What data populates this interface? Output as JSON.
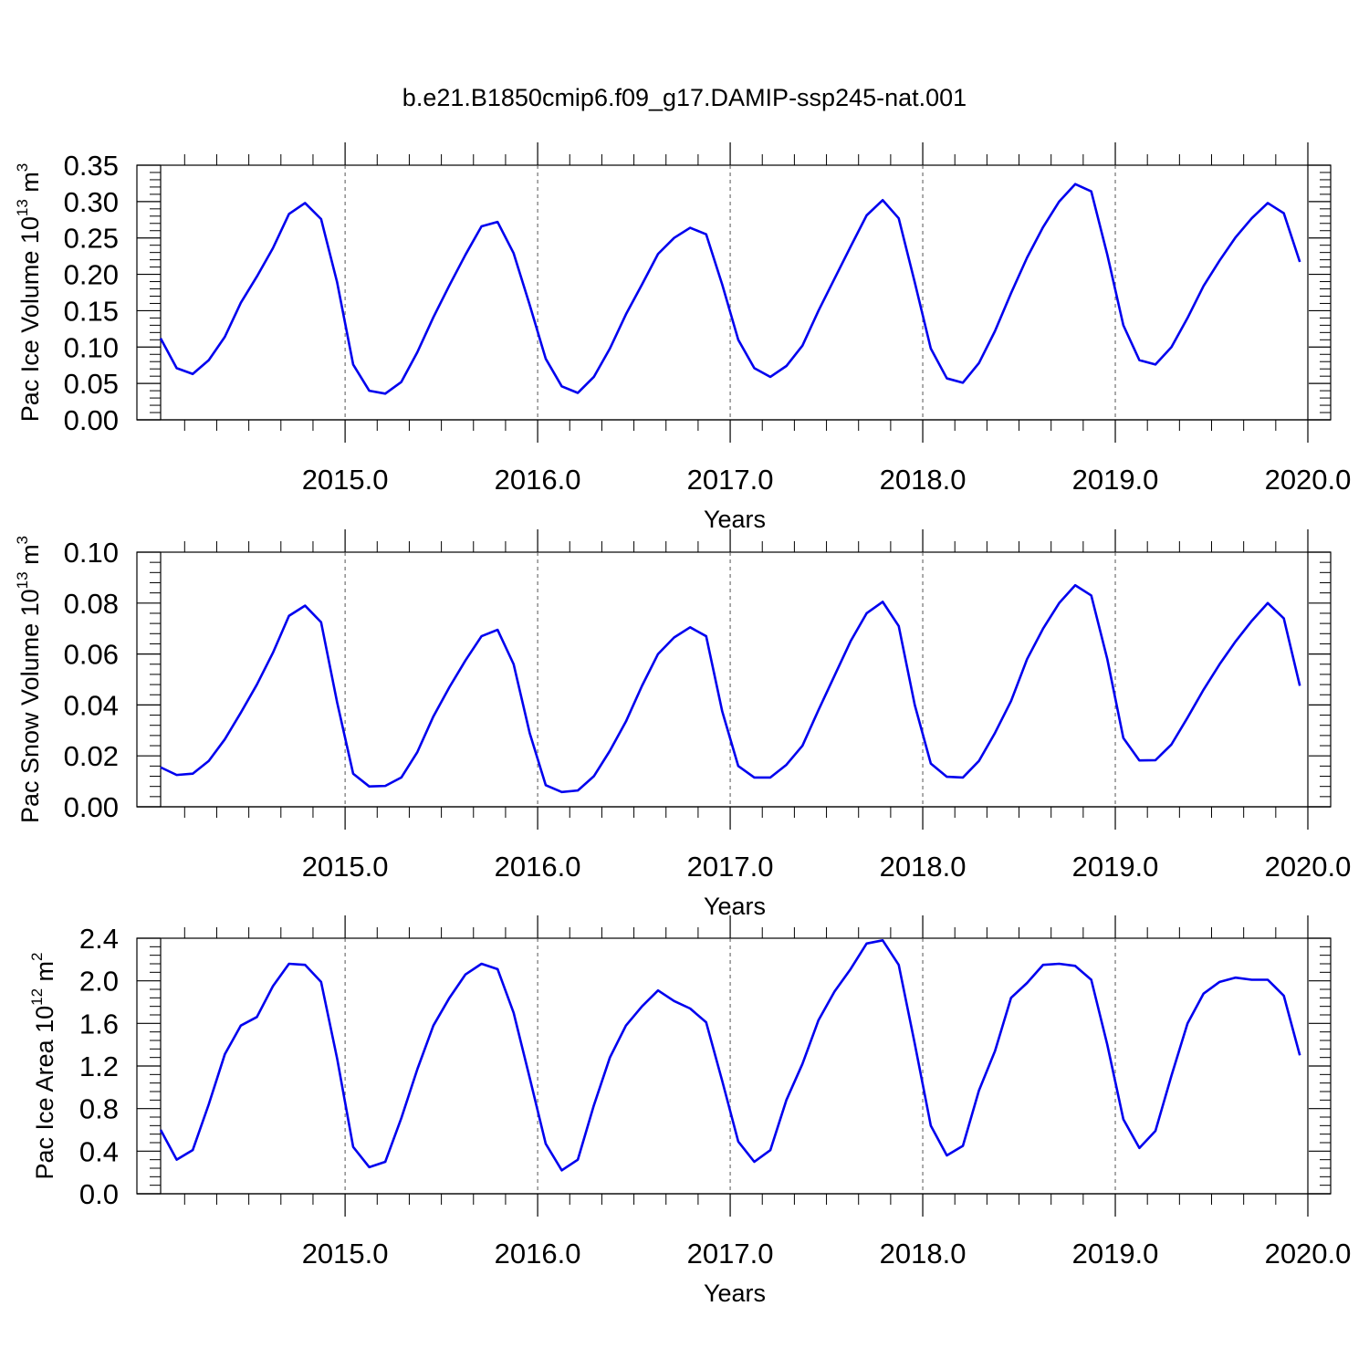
{
  "title": "b.e21.B1850cmip6.f09_g17.DAMIP-ssp245-nat.001",
  "chart_data": [
    {
      "type": "line",
      "ylabel": "Pac Ice Volume 10",
      "ylabel_exp": "13",
      "ylabel_unit": " m",
      "ylabel_unit_exp": "3",
      "xlabel": "Years",
      "xlim": [
        2014.042,
        2020.0
      ],
      "ylim": [
        0,
        0.35
      ],
      "yticks": [
        "0.00",
        "0.05",
        "0.10",
        "0.15",
        "0.20",
        "0.25",
        "0.30",
        "0.35"
      ],
      "xticks": [
        "2015.0",
        "2016.0",
        "2017.0",
        "2018.0",
        "2019.0",
        "2020.0"
      ],
      "x_start": 2014.042,
      "x_step": 0.08333,
      "color": "#0000ee",
      "grid": "vertical dashed at years",
      "values": [
        0.112,
        0.071,
        0.063,
        0.082,
        0.114,
        0.161,
        0.197,
        0.236,
        0.283,
        0.298,
        0.276,
        0.189,
        0.076,
        0.04,
        0.036,
        0.052,
        0.093,
        0.141,
        0.185,
        0.227,
        0.266,
        0.272,
        0.229,
        0.158,
        0.084,
        0.046,
        0.037,
        0.059,
        0.098,
        0.145,
        0.186,
        0.228,
        0.25,
        0.264,
        0.255,
        0.186,
        0.11,
        0.071,
        0.059,
        0.074,
        0.102,
        0.15,
        0.194,
        0.238,
        0.281,
        0.302,
        0.277,
        0.189,
        0.098,
        0.057,
        0.051,
        0.078,
        0.122,
        0.174,
        0.223,
        0.265,
        0.3,
        0.324,
        0.314,
        0.227,
        0.13,
        0.082,
        0.076,
        0.1,
        0.14,
        0.184,
        0.219,
        0.251,
        0.277,
        0.298,
        0.284,
        0.217
      ]
    },
    {
      "type": "line",
      "ylabel": "Pac Snow Volume 10",
      "ylabel_exp": "13",
      "ylabel_unit": " m",
      "ylabel_unit_exp": "3",
      "xlabel": "Years",
      "xlim": [
        2014.042,
        2020.0
      ],
      "ylim": [
        0,
        0.1
      ],
      "yticks": [
        "0.00",
        "0.02",
        "0.04",
        "0.06",
        "0.08",
        "0.10"
      ],
      "xticks": [
        "2015.0",
        "2016.0",
        "2017.0",
        "2018.0",
        "2019.0",
        "2020.0"
      ],
      "x_start": 2014.042,
      "x_step": 0.08333,
      "color": "#0000ee",
      "grid": "vertical dashed at years",
      "values": [
        0.0155,
        0.0125,
        0.013,
        0.018,
        0.0265,
        0.037,
        0.048,
        0.0605,
        0.075,
        0.079,
        0.0725,
        0.041,
        0.013,
        0.008,
        0.0082,
        0.0115,
        0.0215,
        0.0355,
        0.047,
        0.0575,
        0.067,
        0.0695,
        0.056,
        0.029,
        0.0085,
        0.0058,
        0.0064,
        0.012,
        0.022,
        0.0335,
        0.0475,
        0.06,
        0.0665,
        0.0705,
        0.067,
        0.0375,
        0.016,
        0.0115,
        0.0115,
        0.0165,
        0.024,
        0.038,
        0.0515,
        0.065,
        0.076,
        0.0805,
        0.071,
        0.04,
        0.017,
        0.0118,
        0.0115,
        0.018,
        0.029,
        0.0415,
        0.058,
        0.07,
        0.08,
        0.087,
        0.083,
        0.058,
        0.027,
        0.0182,
        0.0183,
        0.0245,
        0.035,
        0.046,
        0.056,
        0.065,
        0.073,
        0.08,
        0.074,
        0.0475
      ]
    },
    {
      "type": "line",
      "ylabel": "Pac Ice Area 10",
      "ylabel_exp": "12",
      "ylabel_unit": " m",
      "ylabel_unit_exp": "2",
      "xlabel": "Years",
      "xlim": [
        2014.042,
        2020.0
      ],
      "ylim": [
        0,
        2.4
      ],
      "yticks": [
        "0.0",
        "0.4",
        "0.8",
        "1.2",
        "1.6",
        "2.0",
        "2.4"
      ],
      "xticks": [
        "2015.0",
        "2016.0",
        "2017.0",
        "2018.0",
        "2019.0",
        "2020.0"
      ],
      "x_start": 2014.042,
      "x_step": 0.08333,
      "color": "#0000ee",
      "grid": "vertical dashed at years",
      "values": [
        0.6,
        0.32,
        0.41,
        0.84,
        1.31,
        1.58,
        1.66,
        1.95,
        2.16,
        2.15,
        1.99,
        1.27,
        0.44,
        0.25,
        0.3,
        0.71,
        1.17,
        1.58,
        1.84,
        2.06,
        2.16,
        2.11,
        1.7,
        1.09,
        0.47,
        0.22,
        0.32,
        0.83,
        1.28,
        1.58,
        1.76,
        1.91,
        1.81,
        1.74,
        1.61,
        1.06,
        0.49,
        0.3,
        0.41,
        0.88,
        1.22,
        1.63,
        1.9,
        2.11,
        2.35,
        2.38,
        2.15,
        1.41,
        0.64,
        0.36,
        0.45,
        0.97,
        1.34,
        1.84,
        1.98,
        2.15,
        2.16,
        2.14,
        2.01,
        1.4,
        0.7,
        0.43,
        0.59,
        1.11,
        1.6,
        1.88,
        1.99,
        2.03,
        2.01,
        2.01,
        1.86,
        1.3
      ]
    }
  ]
}
